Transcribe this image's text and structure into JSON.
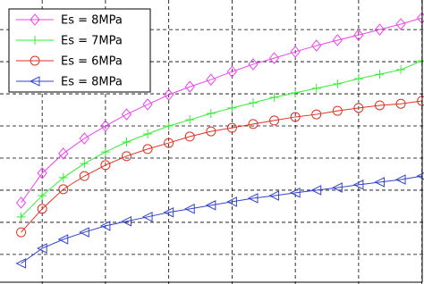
{
  "chart_data": {
    "type": "line",
    "x": [
      1,
      2,
      3,
      4,
      5,
      6,
      7,
      8,
      9,
      10,
      11,
      12,
      13,
      14,
      15,
      16,
      17,
      18,
      19,
      20
    ],
    "series": [
      {
        "name": "Es = 8MPa",
        "color": "#ee44ee",
        "marker": "diamond",
        "values": [
          2.61,
          3.53,
          4.14,
          4.61,
          5.0,
          5.36,
          5.67,
          5.97,
          6.22,
          6.44,
          6.69,
          6.92,
          7.11,
          7.31,
          7.5,
          7.67,
          7.83,
          8.0,
          8.17,
          8.36
        ]
      },
      {
        "name": "Es = 7MPa",
        "color": "#33ee33",
        "marker": "plus",
        "values": [
          2.17,
          2.83,
          3.39,
          3.83,
          4.19,
          4.5,
          4.75,
          5.0,
          5.19,
          5.39,
          5.56,
          5.72,
          5.89,
          6.03,
          6.17,
          6.31,
          6.47,
          6.61,
          6.75,
          7.03
        ]
      },
      {
        "name": "Es = 6MPa",
        "color": "#dd3322",
        "marker": "circle",
        "values": [
          1.69,
          2.42,
          3.03,
          3.44,
          3.78,
          4.06,
          4.28,
          4.47,
          4.67,
          4.83,
          4.94,
          5.06,
          5.17,
          5.28,
          5.36,
          5.47,
          5.56,
          5.64,
          5.69,
          5.78
        ]
      },
      {
        "name": "Es = 8MPa",
        "color": "#3344cc",
        "marker": "triangle-left",
        "values": [
          0.72,
          1.19,
          1.47,
          1.69,
          1.89,
          2.03,
          2.17,
          2.31,
          2.42,
          2.53,
          2.64,
          2.75,
          2.83,
          2.92,
          3.0,
          3.08,
          3.17,
          3.25,
          3.33,
          3.44
        ]
      }
    ],
    "xlim": [
      0,
      20.1
    ],
    "xticks": [
      2,
      5,
      8,
      11,
      14,
      17,
      20
    ],
    "ylim": [
      0.08,
      8.92
    ],
    "yticks": [
      1,
      2,
      3,
      4,
      5,
      6,
      7,
      8
    ],
    "grid": true,
    "legend": "upper left"
  }
}
